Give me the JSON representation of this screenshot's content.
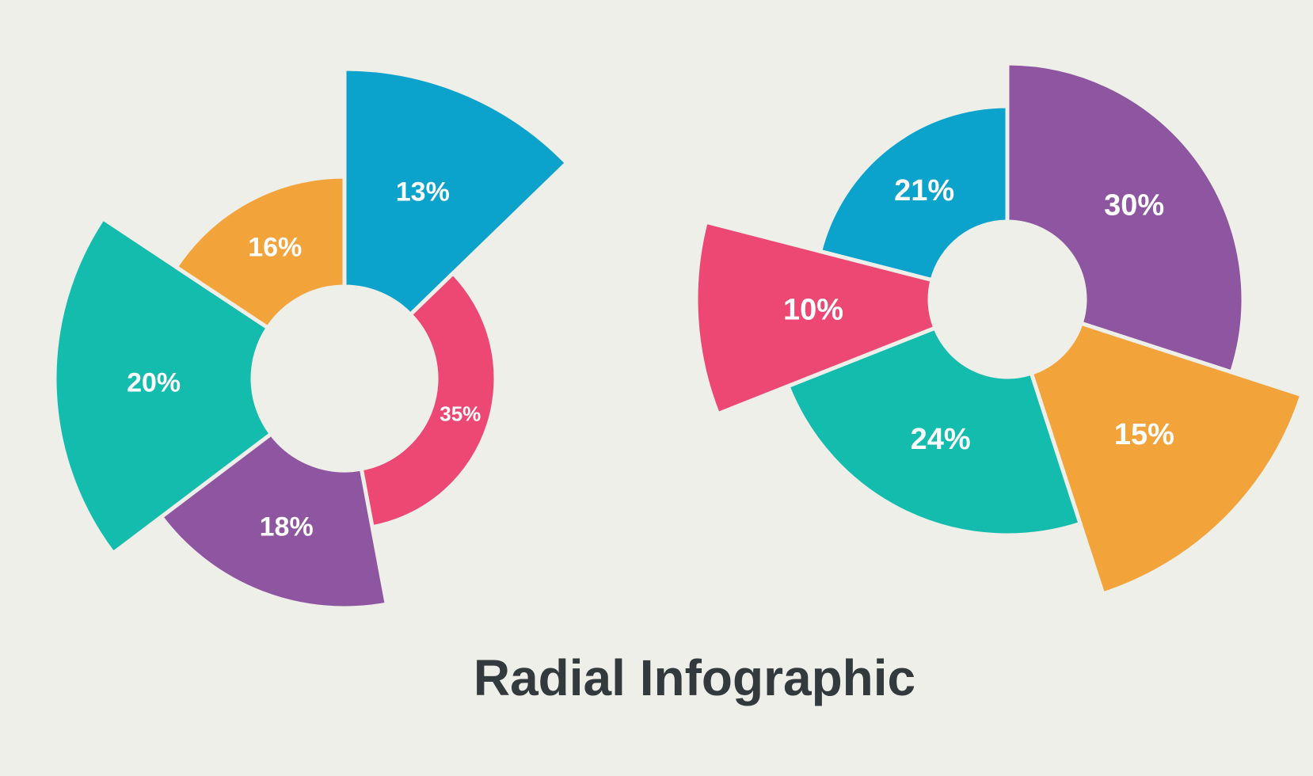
{
  "title": "Radial Infographic",
  "chart_data": [
    {
      "type": "pie",
      "values": [
        13,
        35,
        18,
        20,
        16
      ],
      "value_labels": [
        "13%",
        "35%",
        "18%",
        "20%",
        "16%"
      ],
      "colors": [
        "#0ba3cc",
        "#ec4873",
        "#8e56a0",
        "#14bcad",
        "#f2a33a"
      ]
    },
    {
      "type": "pie",
      "values": [
        30,
        15,
        24,
        10,
        21
      ],
      "value_labels": [
        "30%",
        "15%",
        "24%",
        "10%",
        "21%"
      ],
      "colors": [
        "#8e56a0",
        "#f2a33a",
        "#14bcad",
        "#ec4873",
        "#0ba3cc"
      ]
    }
  ]
}
